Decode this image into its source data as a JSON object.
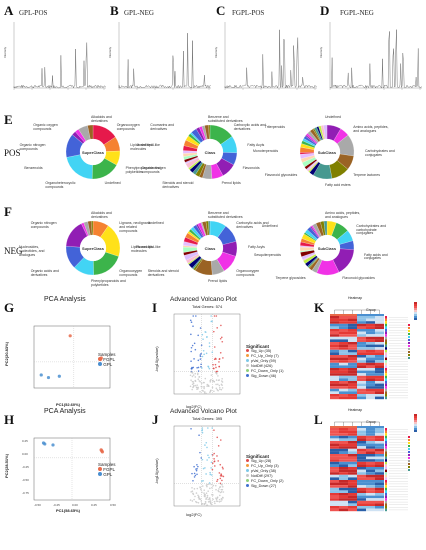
{
  "spectra": [
    {
      "letter": "A",
      "title": "GPL-POS"
    },
    {
      "letter": "B",
      "title": "GPL-NEG"
    },
    {
      "letter": "C",
      "title": "FGPL-POS"
    },
    {
      "letter": "D",
      "title": "FGPL-NEG"
    }
  ],
  "spectrum_axis": {
    "ylabel": "Intensity"
  },
  "rows": {
    "E": {
      "letter": "E",
      "label": "POS"
    },
    "F": {
      "letter": "F",
      "label": "NEG"
    }
  },
  "donut_centers": [
    "SuperClass",
    "Class",
    "SubClass",
    "SuperClass",
    "Class",
    "SubClass"
  ],
  "donut_labels_E1": [
    "Alkaloids and derivatives",
    "Organooxygen compounds",
    "Lipids and lipid-like molecules",
    "Phenylpropanoids and polyketides",
    "Undefined",
    "Organoheterocyclic compounds",
    "Benzenoids",
    "Organic nitrogen compounds",
    "Organic oxygen compounds"
  ],
  "donut_labels_E2": [
    "Benzene and substituted derivatives",
    "Carboxylic acids and derivatives",
    "Fatty Acyls",
    "Flavonoids",
    "Prenol lipids",
    "Steroids and steroid derivatives",
    "Organonitrogen compounds",
    "Undefined",
    "Coumarins and derivatives"
  ],
  "donut_labels_E3": [
    "Undefined",
    "Amino acids, peptides, and analogues",
    "Carbohydrates and conjugates",
    "Terpene lactones",
    "Fatty acid esters",
    "Flavonoid glycosides",
    "Monoterpenoids",
    "Triterpenoids"
  ],
  "donut_labels_F1": [
    "Alkaloids and derivatives",
    "Lignans, neolignans and related compounds",
    "Lipids and lipid-like molecules",
    "Organooxygen compounds",
    "Phenylpropanoids and polyketides",
    "Organic acids and derivatives",
    "Nucleosides, nucleotides, and analogues",
    "Organic nitrogen compounds"
  ],
  "donut_labels_F2": [
    "Benzene and substituted derivatives",
    "Carboxylic acids and derivatives",
    "Fatty Acyls",
    "Organooxygen compounds",
    "Prenol lipids",
    "Steroids and steroid derivatives",
    "Flavonoids",
    "Undefined"
  ],
  "donut_labels_F3": [
    "Amino acids, peptides, and analogues",
    "Carbohydrates and carbohydrate conjugates",
    "Fatty acids and conjugates",
    "Flavonoid glycosides",
    "Terpene glycosides",
    "Sesquiterpenoids",
    "Undefined"
  ],
  "pca_G": {
    "letter": "G",
    "title": "PCA Analysis",
    "xlabel": "PC1(52.60%)",
    "ylabel": "PC2(20.83%)",
    "legend_title": "Samples",
    "legend": [
      "FGPL",
      "GPL"
    ],
    "chart_data": {
      "type": "scatter",
      "series": [
        {
          "name": "FGPL",
          "x": [
            -0.05,
            0.38,
            0.37
          ],
          "y": [
            0.4,
            0.06,
            0.04
          ]
        },
        {
          "name": "GPL",
          "x": [
            -0.45,
            -0.35,
            -0.2
          ],
          "y": [
            -0.2,
            -0.24,
            -0.22
          ]
        }
      ]
    }
  },
  "pca_H": {
    "letter": "H",
    "title": "PCA Analysis",
    "xlabel": "PC1(58.65%)",
    "ylabel": "PC2(28.51%)",
    "legend_title": "Samples",
    "legend": [
      "FGPL",
      "GPL"
    ],
    "ticks": {
      "x": [
        "-0.50",
        "-0.25",
        "0.00",
        "0.25",
        "0.50"
      ],
      "y": [
        "0.25",
        "0.00",
        "-0.25",
        "-0.50",
        "-0.75"
      ]
    },
    "chart_data": {
      "type": "scatter",
      "series": [
        {
          "name": "FGPL",
          "x": [
            0.46,
            0.47,
            0.48
          ],
          "y": [
            0.16,
            0.14,
            0.12
          ]
        },
        {
          "name": "GPL",
          "x": [
            -0.43,
            -0.45,
            -0.3
          ],
          "y": [
            0.28,
            0.3,
            0.26
          ]
        }
      ]
    }
  },
  "volcano_I": {
    "letter": "I",
    "title": "Advanced Volcano Plot",
    "subtitle": "Total Genes: 574",
    "xlabel": "log2(FC)",
    "ylabel": "-log10(pvalue)",
    "legend_title": "Significant",
    "legend": [
      "Sig_Up (35)",
      "FC_Up_Only (7)",
      "pVal_Only (59)",
      "NotDiff (426)",
      "FC_Down_Only (1)",
      "Sig_Down (46)"
    ]
  },
  "volcano_J": {
    "letter": "J",
    "title": "Advanced Volcano Plot",
    "subtitle": "Total Genes: 395",
    "xlabel": "log2(FC)",
    "ylabel": "-log10(pvalue)",
    "legend_title": "Significant",
    "legend": [
      "Sig_Up (28)",
      "FC_Up_Only (3)",
      "pVal_Only (38)",
      "NotDiff (297)",
      "FC_Down_Only (2)",
      "Sig_Down (27)"
    ]
  },
  "heat_K": {
    "letter": "K",
    "title": "Heatmap",
    "group_label": "Group"
  },
  "heat_L": {
    "letter": "L",
    "title": "Heatmap",
    "group_label": "Group"
  },
  "colors": {
    "fgpl": "#e86a4a",
    "gpl": "#4a8fd0",
    "spectrum": "#555555"
  }
}
